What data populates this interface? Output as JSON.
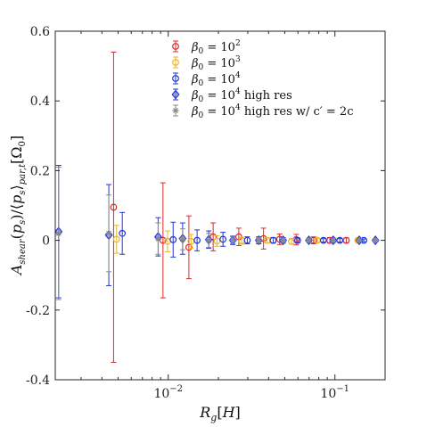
{
  "chart_data": {
    "type": "scatter",
    "title": "",
    "xlabel": "R_g[H]",
    "ylabel": "A_shear(p_s)/⟨p_s⟩_par,t[Ω_0]",
    "xscale": "log",
    "xlim": [
      0.0021,
      0.2
    ],
    "ylim": [
      -0.4,
      0.6
    ],
    "grid": false,
    "legend_position": "top-right",
    "y_ticks": [
      {
        "value": -0.4,
        "label": "-0.4"
      },
      {
        "value": -0.2,
        "label": "-0.2"
      },
      {
        "value": 0,
        "label": "0"
      },
      {
        "value": 0.2,
        "label": "0.2"
      },
      {
        "value": 0.4,
        "label": "0.4"
      },
      {
        "value": 0.6,
        "label": "0.6"
      }
    ],
    "x_ticks": [
      {
        "value": 0.01,
        "label_base": "10",
        "label_exp": "−2"
      },
      {
        "value": 0.1,
        "label_base": "10",
        "label_exp": "−1"
      }
    ],
    "series": [
      {
        "name": "β0 = 10^2",
        "legend_main": "β",
        "legend_sub": "0",
        "legend_rest": " = 10",
        "legend_exp": "2",
        "legend_tail": "",
        "color": "#e0282b",
        "marker": "circle",
        "x": [
          0.0047,
          0.0093,
          0.0133,
          0.0186,
          0.0265,
          0.0373,
          0.0466,
          0.0586,
          0.0745,
          0.0932,
          0.117
        ],
        "y": [
          0.095,
          0.0,
          -0.02,
          0.01,
          0.01,
          0.005,
          0.003,
          0.002,
          0.0,
          0.0,
          0.0
        ],
        "err": [
          0.445,
          0.165,
          0.09,
          0.04,
          0.025,
          0.03,
          0.015,
          0.015,
          0.01,
          0.008,
          0.007
        ]
      },
      {
        "name": "β0 = 10^3",
        "legend_main": "β",
        "legend_sub": "0",
        "legend_rest": " = 10",
        "legend_exp": "3",
        "legend_tail": "",
        "color": "#f0b323",
        "marker": "circle",
        "x": [
          0.0049,
          0.0099,
          0.0137,
          0.0196,
          0.0276,
          0.0392,
          0.0549,
          0.0784,
          0.098,
          0.137
        ],
        "y": [
          0.003,
          -0.003,
          -0.003,
          -0.002,
          -0.001,
          0.0,
          -0.003,
          0.0,
          0.0,
          0.0
        ],
        "err": [
          0.04,
          0.03,
          0.02,
          0.015,
          0.01,
          0.008,
          0.008,
          0.006,
          0.005,
          0.005
        ]
      },
      {
        "name": "β0 = 10^4",
        "legend_main": "β",
        "legend_sub": "0",
        "legend_rest": " = 10",
        "legend_exp": "4",
        "legend_tail": "",
        "color": "#1f35d6",
        "marker": "circle",
        "x": [
          0.0053,
          0.0107,
          0.0149,
          0.0213,
          0.0298,
          0.0426,
          0.0597,
          0.0853,
          0.107,
          0.149
        ],
        "y": [
          0.02,
          0.002,
          0.0,
          0.003,
          0.0,
          0.0,
          0.0,
          0.0,
          0.0,
          0.0
        ],
        "err": [
          0.06,
          0.05,
          0.03,
          0.02,
          0.01,
          0.008,
          0.007,
          0.005,
          0.005,
          0.004
        ]
      },
      {
        "name": "β0 = 10^4 high res",
        "legend_main": "β",
        "legend_sub": "0",
        "legend_rest": " = 10",
        "legend_exp": "4",
        "legend_tail": " high res",
        "color": "#1f35d6",
        "marker": "diamond",
        "x": [
          0.0022,
          0.0044,
          0.0087,
          0.0122,
          0.0175,
          0.0244,
          0.0349,
          0.0489,
          0.0698,
          0.0977,
          0.14,
          0.175
        ],
        "y": [
          0.025,
          0.015,
          0.01,
          0.005,
          0.002,
          0.0,
          0.0,
          0.0,
          0.0,
          0.0,
          0.0,
          0.0
        ],
        "err": [
          0.19,
          0.145,
          0.055,
          0.045,
          0.025,
          0.012,
          0.01,
          0.008,
          0.006,
          0.006,
          0.005,
          0.005
        ]
      },
      {
        "name": "β0 = 10^4 high res w/ c' = 2c",
        "legend_main": "β",
        "legend_sub": "0",
        "legend_rest": " = 10",
        "legend_exp": "4",
        "legend_tail": " high res w/ c′ = 2c",
        "color": "#8a8a8a",
        "marker": "star",
        "x": [
          0.0022,
          0.0044,
          0.0087,
          0.0122,
          0.0175,
          0.0244,
          0.0349,
          0.0489,
          0.0698,
          0.0977,
          0.14,
          0.175
        ],
        "y": [
          0.02,
          0.02,
          0.005,
          0.003,
          0.0,
          0.0,
          0.0,
          0.0,
          0.0,
          0.0,
          0.0,
          0.0
        ],
        "err": [
          0.19,
          0.11,
          0.045,
          0.03,
          0.02,
          0.01,
          0.008,
          0.006,
          0.005,
          0.005,
          0.004,
          0.004
        ]
      }
    ]
  }
}
